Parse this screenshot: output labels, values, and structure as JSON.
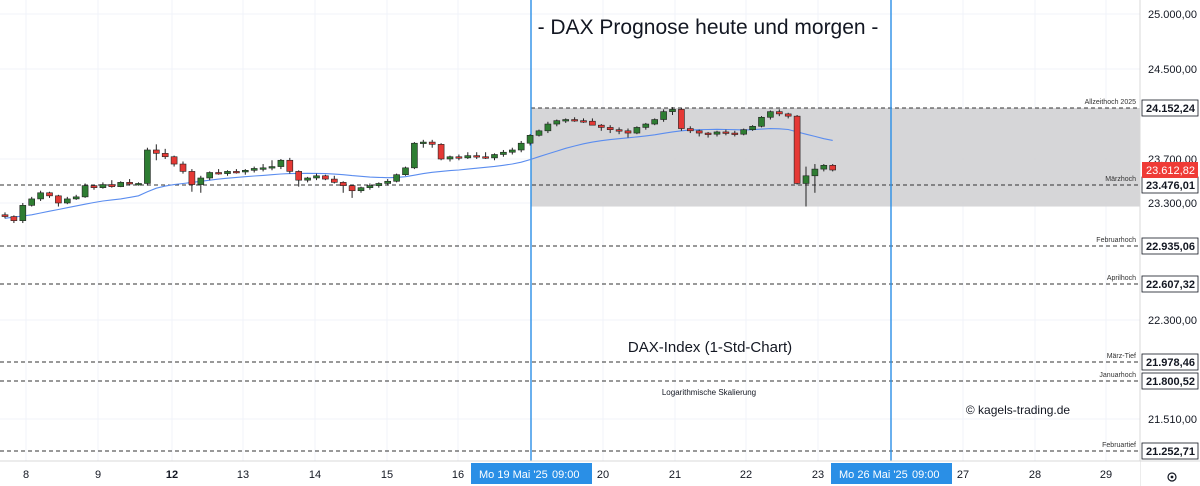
{
  "chart_data": {
    "type": "candlestick",
    "title": "- DAX Prognose heute und morgen -",
    "subtitle": "DAX-Index (1-Std-Chart)",
    "scale_note": "Logarithmische Skalierung",
    "credit": "© kagels-trading.de",
    "y_axis_ticks": [
      "25.000,00",
      "24.500,00",
      "23.700,00",
      "23.300,00",
      "22.300,00",
      "21.510,00"
    ],
    "x_axis_ticks": [
      {
        "label": "8",
        "bold": false
      },
      {
        "label": "9",
        "bold": false
      },
      {
        "label": "12",
        "bold": true
      },
      {
        "label": "13",
        "bold": false
      },
      {
        "label": "14",
        "bold": false
      },
      {
        "label": "15",
        "bold": false
      },
      {
        "label": "16",
        "bold": false
      },
      {
        "label": "20",
        "bold": false
      },
      {
        "label": "21",
        "bold": false
      },
      {
        "label": "22",
        "bold": false
      },
      {
        "label": "23",
        "bold": false
      },
      {
        "label": "27",
        "bold": false
      },
      {
        "label": "28",
        "bold": false
      },
      {
        "label": "29",
        "bold": false
      }
    ],
    "date_markers": [
      {
        "label": "Mo 19 Mai '25",
        "time": "09:00"
      },
      {
        "label": "Mo 26 Mai '25",
        "time": "09:00"
      }
    ],
    "levels": [
      {
        "name": "Allzeithoch 2025",
        "value": 24152.24,
        "price_label": "24.152,24"
      },
      {
        "name": "Märzhoch",
        "value": 23476.01,
        "price_label": "23.476,01"
      },
      {
        "name": "Februarhoch",
        "value": 22935.06,
        "price_label": "22.935,06"
      },
      {
        "name": "Aprilhoch",
        "value": 22607.32,
        "price_label": "22.607,32"
      },
      {
        "name": "März-Tief",
        "value": 21978.46,
        "price_label": "21.978,46"
      },
      {
        "name": "Januarhoch",
        "value": 21800.52,
        "price_label": "21.800,52"
      },
      {
        "name": "Februartief",
        "value": 21252.71,
        "price_label": "21.252,71"
      }
    ],
    "current_price": {
      "value": 23612.82,
      "label": "23.612,82"
    },
    "highlight_range": {
      "from": 23270,
      "to": 24152.24
    },
    "candles": [
      [
        23200,
        23220,
        23170,
        23185
      ],
      [
        23185,
        23195,
        23130,
        23150
      ],
      [
        23150,
        23300,
        23130,
        23280
      ],
      [
        23280,
        23360,
        23270,
        23340
      ],
      [
        23340,
        23420,
        23320,
        23400
      ],
      [
        23400,
        23410,
        23350,
        23370
      ],
      [
        23370,
        23380,
        23270,
        23300
      ],
      [
        23300,
        23360,
        23290,
        23340
      ],
      [
        23340,
        23380,
        23330,
        23360
      ],
      [
        23360,
        23490,
        23350,
        23470
      ],
      [
        23470,
        23480,
        23430,
        23450
      ],
      [
        23450,
        23500,
        23440,
        23480
      ],
      [
        23480,
        23520,
        23450,
        23460
      ],
      [
        23460,
        23510,
        23455,
        23500
      ],
      [
        23500,
        23530,
        23470,
        23485
      ],
      [
        23485,
        23500,
        23470,
        23490
      ],
      [
        23490,
        23800,
        23470,
        23780
      ],
      [
        23780,
        23830,
        23690,
        23750
      ],
      [
        23750,
        23790,
        23700,
        23720
      ],
      [
        23720,
        23730,
        23640,
        23660
      ],
      [
        23660,
        23680,
        23580,
        23600
      ],
      [
        23600,
        23620,
        23410,
        23480
      ],
      [
        23480,
        23560,
        23400,
        23540
      ],
      [
        23540,
        23600,
        23520,
        23590
      ],
      [
        23590,
        23620,
        23570,
        23580
      ],
      [
        23580,
        23610,
        23560,
        23600
      ],
      [
        23600,
        23620,
        23580,
        23595
      ],
      [
        23595,
        23620,
        23570,
        23610
      ],
      [
        23610,
        23640,
        23590,
        23625
      ],
      [
        23625,
        23660,
        23600,
        23630
      ],
      [
        23630,
        23690,
        23610,
        23640
      ],
      [
        23640,
        23700,
        23620,
        23690
      ],
      [
        23690,
        23710,
        23580,
        23600
      ],
      [
        23600,
        23610,
        23460,
        23520
      ],
      [
        23520,
        23550,
        23500,
        23540
      ],
      [
        23540,
        23580,
        23520,
        23560
      ],
      [
        23560,
        23570,
        23520,
        23530
      ],
      [
        23530,
        23560,
        23490,
        23500
      ],
      [
        23500,
        23510,
        23400,
        23470
      ],
      [
        23470,
        23480,
        23350,
        23420
      ],
      [
        23420,
        23460,
        23400,
        23450
      ],
      [
        23450,
        23490,
        23430,
        23470
      ],
      [
        23470,
        23500,
        23450,
        23490
      ],
      [
        23490,
        23530,
        23470,
        23510
      ],
      [
        23510,
        23580,
        23500,
        23570
      ],
      [
        23570,
        23640,
        23560,
        23630
      ],
      [
        23630,
        23850,
        23620,
        23840
      ],
      [
        23840,
        23870,
        23800,
        23850
      ],
      [
        23850,
        23870,
        23800,
        23830
      ],
      [
        23830,
        23840,
        23690,
        23700
      ],
      [
        23700,
        23730,
        23680,
        23720
      ],
      [
        23720,
        23740,
        23690,
        23710
      ],
      [
        23710,
        23760,
        23700,
        23730
      ],
      [
        23730,
        23760,
        23700,
        23720
      ],
      [
        23720,
        23760,
        23700,
        23710
      ],
      [
        23710,
        23750,
        23690,
        23740
      ],
      [
        23740,
        23780,
        23720,
        23760
      ],
      [
        23760,
        23800,
        23740,
        23780
      ],
      [
        23780,
        23860,
        23760,
        23840
      ],
      [
        23840,
        23920,
        23820,
        23910
      ],
      [
        23910,
        23960,
        23900,
        23950
      ],
      [
        23950,
        24030,
        23930,
        24010
      ],
      [
        24010,
        24050,
        23990,
        24040
      ],
      [
        24040,
        24060,
        24020,
        24050
      ],
      [
        24050,
        24070,
        24030,
        24040
      ],
      [
        24040,
        24060,
        24020,
        24035
      ],
      [
        24035,
        24060,
        24010,
        24000
      ],
      [
        24000,
        24010,
        23950,
        23980
      ],
      [
        23980,
        24000,
        23930,
        23960
      ],
      [
        23960,
        23980,
        23920,
        23950
      ],
      [
        23950,
        23970,
        23890,
        23930
      ],
      [
        23930,
        23990,
        23920,
        23980
      ],
      [
        23980,
        24020,
        23960,
        24010
      ],
      [
        24010,
        24060,
        24000,
        24050
      ],
      [
        24050,
        24140,
        24030,
        24120
      ],
      [
        24120,
        24160,
        24090,
        24140
      ],
      [
        24140,
        24150,
        23950,
        23970
      ],
      [
        23970,
        23990,
        23930,
        23950
      ],
      [
        23950,
        23960,
        23900,
        23930
      ],
      [
        23930,
        23940,
        23890,
        23920
      ],
      [
        23920,
        23950,
        23900,
        23940
      ],
      [
        23940,
        23960,
        23910,
        23930
      ],
      [
        23930,
        23950,
        23900,
        23920
      ],
      [
        23920,
        23970,
        23910,
        23960
      ],
      [
        23960,
        24000,
        23950,
        23990
      ],
      [
        23990,
        24080,
        23980,
        24070
      ],
      [
        24070,
        24130,
        24050,
        24120
      ],
      [
        24120,
        24140,
        24080,
        24100
      ],
      [
        24100,
        24110,
        24060,
        24080
      ],
      [
        24080,
        24090,
        23480,
        23490
      ],
      [
        23490,
        23640,
        23270,
        23560
      ],
      [
        23560,
        23660,
        23400,
        23620
      ],
      [
        23620,
        23660,
        23600,
        23650
      ],
      [
        23650,
        23660,
        23600,
        23612.82
      ]
    ],
    "moving_average": [
      23170,
      23180,
      23190,
      23200,
      23215,
      23230,
      23245,
      23260,
      23275,
      23290,
      23305,
      23320,
      23330,
      23340,
      23355,
      23370,
      23410,
      23445,
      23465,
      23480,
      23490,
      23500,
      23510,
      23520,
      23530,
      23538,
      23545,
      23552,
      23558,
      23564,
      23570,
      23576,
      23580,
      23582,
      23583,
      23582,
      23580,
      23575,
      23570,
      23562,
      23555,
      23548,
      23545,
      23543,
      23545,
      23552,
      23565,
      23580,
      23592,
      23600,
      23607,
      23613,
      23620,
      23627,
      23634,
      23641,
      23650,
      23660,
      23675,
      23695,
      23720,
      23745,
      23770,
      23795,
      23815,
      23835,
      23850,
      23862,
      23872,
      23880,
      23888,
      23896,
      23905,
      23915,
      23928,
      23940,
      23950,
      23956,
      23960,
      23962,
      23963,
      23962,
      23960,
      23958,
      23960,
      23965,
      23970,
      23968,
      23962,
      23940,
      23920,
      23900,
      23880,
      23865
    ]
  }
}
